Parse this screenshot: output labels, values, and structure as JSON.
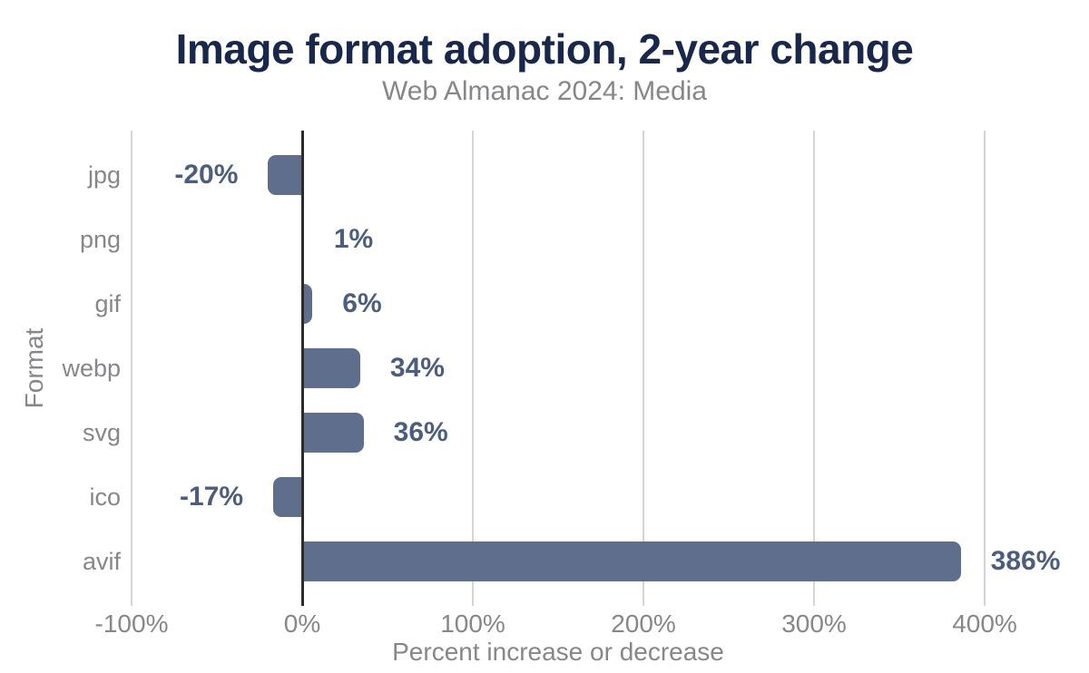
{
  "header": {
    "title": "Image format adoption, 2-year change",
    "subtitle": "Web Almanac 2024: Media"
  },
  "chart_data": {
    "type": "bar",
    "orientation": "horizontal",
    "title": "Image format adoption, 2-year change",
    "subtitle": "Web Almanac 2024: Media",
    "xlabel": "Percent increase or decrease",
    "ylabel": "Format",
    "categories": [
      "jpg",
      "png",
      "gif",
      "webp",
      "svg",
      "ico",
      "avif"
    ],
    "values": [
      -20,
      1,
      6,
      34,
      36,
      -17,
      386
    ],
    "value_labels": [
      "-20%",
      "1%",
      "6%",
      "34%",
      "36%",
      "-17%",
      "386%"
    ],
    "xlim": [
      -100,
      400
    ],
    "xticks": [
      -100,
      0,
      100,
      200,
      300,
      400
    ],
    "xtick_labels": [
      "-100%",
      "0%",
      "100%",
      "200%",
      "300%",
      "400%"
    ],
    "grid": true,
    "legend": "none",
    "colors": {
      "bar": "#5f6e8c",
      "value_label": "#4d5d7e",
      "title": "#19284a",
      "muted_text": "#85878a",
      "gridline": "#d5d5d5",
      "zero_line": "#2b2b2b",
      "background": "#ffffff"
    }
  }
}
